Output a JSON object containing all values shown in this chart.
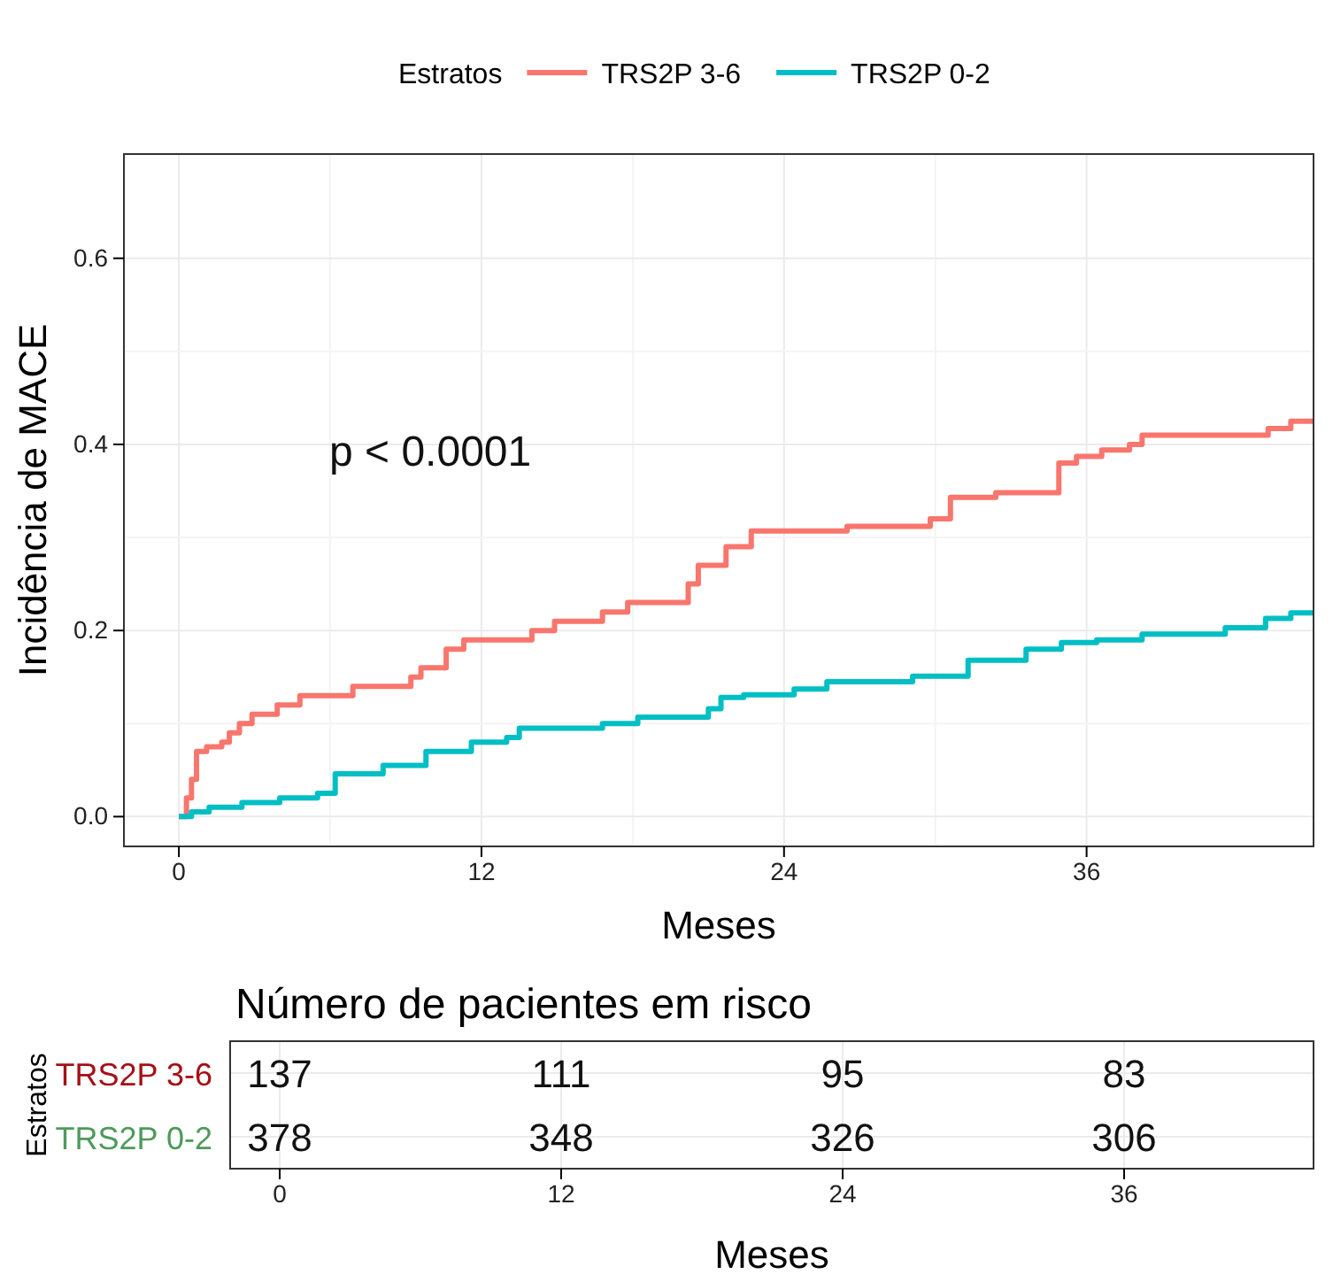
{
  "chart_data": [
    {
      "type": "step",
      "legend_title": "Estratos",
      "legend": "top",
      "xlabel": "Meses",
      "ylabel": "Incidência de MACE",
      "grid": true,
      "xlim": [
        -2.18,
        45
      ],
      "ylim": [
        -0.032,
        0.712
      ],
      "xticks": [
        0,
        12,
        24,
        36
      ],
      "yticks": [
        {
          "value": 0,
          "label": "0.0"
        },
        {
          "value": 0.2,
          "label": "0.2"
        },
        {
          "value": 0.4,
          "label": "0.4"
        },
        {
          "value": 0.6,
          "label": "0.6"
        }
      ],
      "annotations": [
        "p < 0.0001"
      ],
      "series": [
        {
          "name": "TRS2P 3-6",
          "color": "#f8766d",
          "x": [
            0,
            0.3,
            0.5,
            0.7,
            1.1,
            1.7,
            2.0,
            2.4,
            2.9,
            3.9,
            4.8,
            6.9,
            9.2,
            9.6,
            10.6,
            11.3,
            14.0,
            14.9,
            16.8,
            17.8,
            20.2,
            20.6,
            21.7,
            22.7,
            26.5,
            29.8,
            30.6,
            32.4,
            34.9,
            35.6,
            36.6,
            37.7,
            38.2,
            43.2,
            44.1,
            45
          ],
          "values": [
            0,
            0.02,
            0.04,
            0.07,
            0.075,
            0.08,
            0.09,
            0.1,
            0.11,
            0.12,
            0.13,
            0.14,
            0.15,
            0.16,
            0.18,
            0.19,
            0.2,
            0.21,
            0.22,
            0.23,
            0.25,
            0.27,
            0.29,
            0.307,
            0.312,
            0.32,
            0.343,
            0.348,
            0.38,
            0.387,
            0.394,
            0.4,
            0.41,
            0.417,
            0.425,
            0.425
          ]
        },
        {
          "name": "TRS2P 0-2",
          "color": "#00bfc4",
          "x": [
            0,
            0.5,
            1.2,
            2.5,
            4.0,
            5.5,
            6.2,
            8.1,
            9.8,
            11.6,
            13.0,
            13.5,
            16.8,
            18.2,
            21.0,
            21.5,
            22.4,
            24.4,
            25.7,
            29.1,
            31.3,
            33.6,
            35.0,
            36.4,
            38.2,
            41.5,
            43.1,
            44.1,
            45
          ],
          "values": [
            0,
            0.005,
            0.01,
            0.015,
            0.02,
            0.025,
            0.046,
            0.055,
            0.07,
            0.08,
            0.085,
            0.095,
            0.1,
            0.107,
            0.116,
            0.128,
            0.131,
            0.137,
            0.145,
            0.151,
            0.168,
            0.18,
            0.187,
            0.19,
            0.196,
            0.203,
            0.213,
            0.219,
            0.219
          ]
        }
      ]
    },
    {
      "type": "heatmap",
      "data_labels": true,
      "title": "Número de pacientes em risco",
      "xlabel": "Meses",
      "ylabel": "Estratos",
      "grid": true,
      "categories": [
        "0",
        "12",
        "24",
        "36"
      ],
      "y_categories": [
        "TRS2P 3-6",
        "TRS2P 0-2"
      ],
      "colors": [
        "#a50f15",
        "#4e9a5a"
      ],
      "cells": [
        [
          137,
          111,
          95,
          83
        ],
        [
          378,
          348,
          326,
          306
        ]
      ]
    }
  ]
}
